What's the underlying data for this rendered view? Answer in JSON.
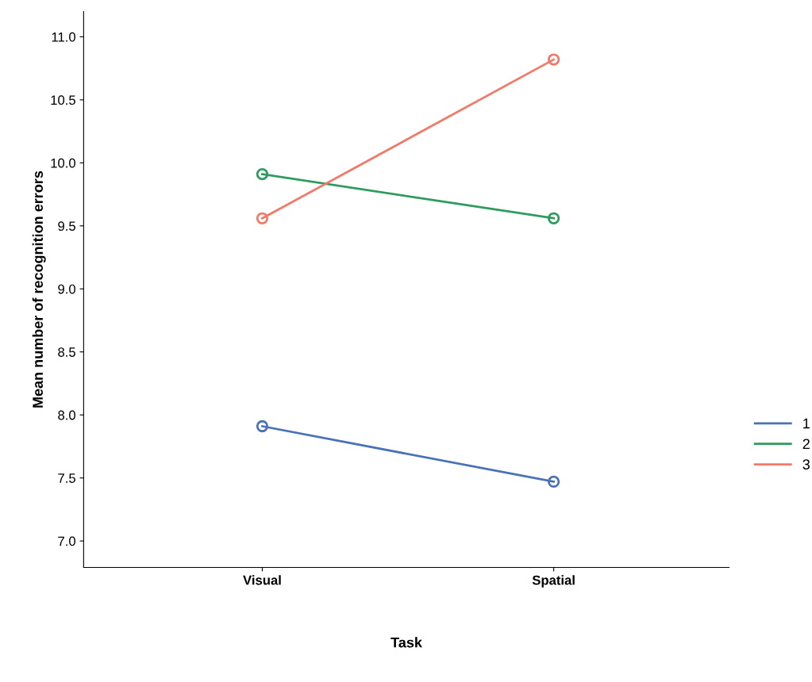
{
  "chart_data": {
    "type": "line",
    "xlabel": "Task",
    "ylabel": "Mean number of recognition errors",
    "categories": [
      "Visual",
      "Spatial"
    ],
    "series": [
      {
        "name": "1",
        "color": "#4a72b8",
        "values": [
          7.91,
          7.47
        ]
      },
      {
        "name": "2",
        "color": "#2e9b5f",
        "values": [
          9.91,
          9.56
        ]
      },
      {
        "name": "3",
        "color": "#f07a6a",
        "values": [
          9.56,
          10.82
        ]
      }
    ],
    "ylim": [
      6.79,
      11.2
    ],
    "yticks": [
      {
        "value": 7,
        "label": "7.0"
      },
      {
        "value": 7.5,
        "label": "7.5"
      },
      {
        "value": 8,
        "label": "8.0"
      },
      {
        "value": 8.5,
        "label": "8.5"
      },
      {
        "value": 9,
        "label": "9.0"
      },
      {
        "value": 9.5,
        "label": "9.5"
      },
      {
        "value": 10,
        "label": "10.0"
      },
      {
        "value": 10.5,
        "label": "10.5"
      },
      {
        "value": 11,
        "label": "11.0"
      }
    ],
    "grid": false,
    "legend": "right",
    "marker": "circle",
    "line_style": "solid"
  }
}
